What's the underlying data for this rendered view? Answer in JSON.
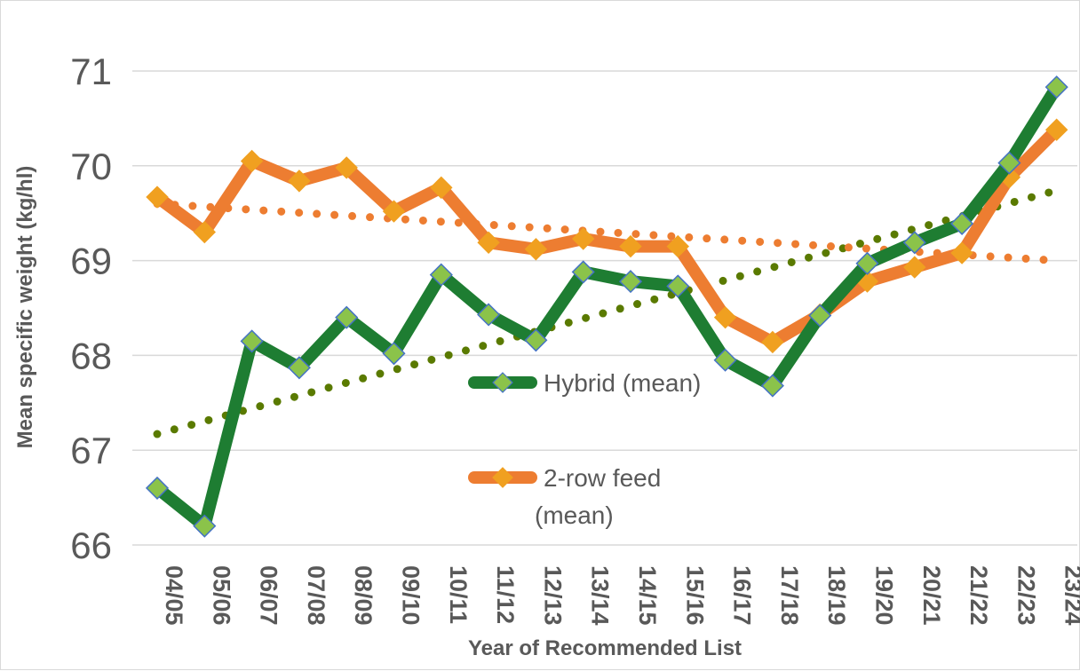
{
  "chart_data": {
    "type": "line",
    "xlabel": "Year of Recommended List",
    "ylabel": "Mean specific weight (kg/hl)",
    "ylim": [
      66,
      71
    ],
    "yticks": [
      "66",
      "67",
      "68",
      "69",
      "70",
      "71"
    ],
    "grid": "horizontal",
    "categories": [
      "04/05",
      "05/06",
      "06/07",
      "07/08",
      "08/09",
      "09/10",
      "10/11",
      "11/12",
      "12/13",
      "13/14",
      "14/15",
      "15/16",
      "16/17",
      "17/18",
      "18/19",
      "19/20",
      "20/21",
      "21/22",
      "22/23",
      "23/24"
    ],
    "series": [
      {
        "name": "Hybrid (mean)",
        "color": "#1e7d32",
        "marker_color": "#8bc34a",
        "values": [
          66.6,
          66.2,
          68.15,
          67.87,
          68.4,
          68.02,
          68.85,
          68.43,
          68.16,
          68.88,
          68.78,
          68.73,
          67.95,
          67.68,
          68.42,
          68.97,
          69.19,
          69.39,
          70.03,
          70.83
        ],
        "trendline": {
          "type": "linear",
          "style": "dotted",
          "color": "#5a7a00",
          "start": 67.17,
          "end": 69.74
        }
      },
      {
        "name": "2-row feed (mean)",
        "color": "#ed7d31",
        "marker_color": "#f0a020",
        "values": [
          69.67,
          69.3,
          70.05,
          69.84,
          69.98,
          69.52,
          69.77,
          69.19,
          69.12,
          69.23,
          69.15,
          69.15,
          68.4,
          68.14,
          68.43,
          68.78,
          68.93,
          69.08,
          69.88,
          70.38
        ],
        "trendline": {
          "type": "linear",
          "style": "dotted",
          "color": "#ed7d31",
          "start": 69.6,
          "end": 69.0
        }
      }
    ],
    "legend": [
      {
        "line1": "Hybrid (mean)",
        "line2": ""
      },
      {
        "line1": "2-row feed",
        "line2": "(mean)"
      }
    ],
    "legend_position": "inside-center"
  }
}
